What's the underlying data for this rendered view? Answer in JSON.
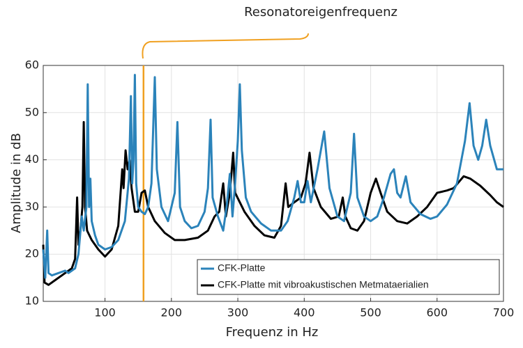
{
  "chart_data": {
    "type": "line",
    "xlabel": "Frequenz in Hz",
    "ylabel": "Amplitude in dB",
    "xlim": [
      7,
      700
    ],
    "ylim": [
      10,
      60
    ],
    "xticks": [
      100,
      200,
      300,
      400,
      500,
      600,
      700
    ],
    "yticks": [
      10,
      20,
      30,
      40,
      50,
      60
    ],
    "grid": true,
    "legend": "lower right",
    "annotation": {
      "text": "Resonatoreigenfrequenz",
      "x": 158,
      "color": "#f0a020"
    },
    "series": [
      {
        "name": "CFK-Platte",
        "color": "#2b83ba",
        "x": [
          7,
          10,
          13,
          15,
          20,
          30,
          40,
          45,
          55,
          60,
          65,
          68,
          72,
          74,
          76,
          78,
          80,
          85,
          90,
          100,
          110,
          120,
          130,
          136,
          139,
          141,
          143,
          145,
          147,
          150,
          155,
          160,
          165,
          170,
          175,
          178,
          185,
          195,
          205,
          209,
          213,
          220,
          230,
          240,
          250,
          255,
          259,
          262,
          270,
          278,
          283,
          288,
          292,
          296,
          300,
          303,
          306,
          312,
          320,
          335,
          350,
          365,
          375,
          385,
          390,
          395,
          400,
          405,
          410,
          420,
          430,
          438,
          450,
          460,
          470,
          475,
          480,
          490,
          500,
          510,
          520,
          530,
          535,
          540,
          545,
          553,
          560,
          575,
          590,
          600,
          615,
          630,
          642,
          649,
          655,
          662,
          668,
          674,
          680,
          690,
          700
        ],
        "values": [
          21,
          15,
          25,
          16,
          15.5,
          16,
          16.5,
          16,
          17,
          20,
          28,
          25,
          30,
          56,
          30,
          36,
          27,
          24,
          22,
          21,
          21.5,
          23,
          27,
          36,
          53.5,
          35,
          40,
          58,
          35,
          30,
          29,
          28.5,
          30,
          35,
          57.5,
          38,
          30,
          27,
          33,
          48,
          30,
          27,
          25.5,
          26,
          29,
          34,
          48.5,
          32,
          28,
          25,
          30,
          37,
          28,
          35,
          44,
          56,
          42,
          32,
          29,
          26.5,
          25,
          25,
          27,
          32,
          35.5,
          31,
          31,
          35.5,
          31,
          38,
          46,
          34,
          28,
          27,
          33,
          45.5,
          32,
          28,
          27,
          28,
          32,
          37,
          38,
          33,
          32,
          36.5,
          31,
          28.5,
          27.5,
          28,
          30.5,
          35,
          44,
          52,
          43,
          40,
          43,
          48.5,
          43,
          38,
          38
        ]
      },
      {
        "name": "CFK-Platte mit vibroakustischen Metmataerialien",
        "color": "#000000",
        "x": [
          7,
          9,
          15,
          25,
          40,
          50,
          55,
          58,
          60,
          63,
          66,
          68,
          70,
          73,
          80,
          90,
          100,
          110,
          120,
          126,
          128,
          131,
          134,
          137,
          140,
          145,
          150,
          155,
          160,
          165,
          175,
          190,
          205,
          220,
          240,
          255,
          265,
          272,
          278,
          282,
          288,
          293,
          296,
          310,
          325,
          340,
          355,
          365,
          372,
          376,
          385,
          395,
          402,
          408,
          414,
          425,
          440,
          452,
          458,
          462,
          470,
          480,
          490,
          500,
          508,
          515,
          525,
          540,
          555,
          570,
          585,
          600,
          615,
          625,
          640,
          650,
          665,
          680,
          690,
          700
        ],
        "values": [
          22,
          14,
          13.5,
          14.5,
          16,
          17,
          19,
          32,
          22,
          25,
          30,
          48,
          30,
          25,
          23,
          21,
          19.5,
          21,
          26,
          38,
          34,
          42,
          38,
          40,
          34,
          29,
          29,
          33,
          33.5,
          30,
          27,
          24.5,
          23,
          23,
          23.5,
          25,
          28,
          29,
          35,
          28,
          33,
          41.5,
          33,
          29,
          26,
          24,
          23.5,
          26,
          35,
          30,
          31,
          32,
          35,
          41.5,
          34,
          30,
          27.5,
          28,
          32,
          28,
          25.5,
          25,
          27,
          33,
          36,
          33,
          29,
          27,
          26.5,
          28,
          30,
          33,
          33.5,
          34,
          36.5,
          36,
          34.5,
          32.5,
          31,
          30
        ]
      }
    ]
  }
}
